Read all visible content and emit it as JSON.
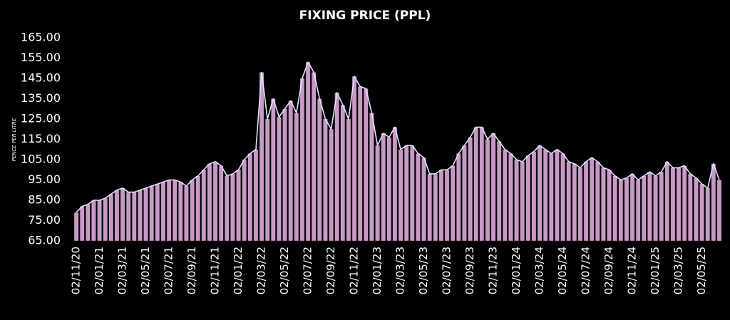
{
  "chart_data": {
    "type": "bar",
    "title": "FIXING PRICE (PPL)",
    "y_label": "PENCE PER LITRE",
    "categories": [
      "02/11/20",
      null,
      null,
      null,
      "02/01/21",
      null,
      null,
      null,
      "02/03/21",
      null,
      null,
      null,
      "02/05/21",
      null,
      null,
      null,
      "02/07/21",
      null,
      null,
      null,
      "02/09/21",
      null,
      null,
      null,
      "02/11/21",
      null,
      null,
      null,
      "02/01/22",
      null,
      null,
      null,
      "02/03/22",
      null,
      null,
      null,
      "02/05/22",
      null,
      null,
      null,
      "02/07/22",
      null,
      null,
      null,
      "02/09/22",
      null,
      null,
      null,
      "02/11/22",
      null,
      null,
      null,
      "02/01/23",
      null,
      null,
      null,
      "02/03/23",
      null,
      null,
      null,
      "02/05/23",
      null,
      null,
      null,
      "02/07/23",
      null,
      null,
      null,
      "02/09/23",
      null,
      null,
      null,
      "02/11/23",
      null,
      null,
      null,
      "02/01/24",
      null,
      null,
      null,
      "02/03/24",
      null,
      null,
      null,
      "02/05/24",
      null,
      null,
      null,
      "02/07/24",
      null,
      null,
      null,
      "02/09/24",
      null,
      null,
      null,
      "02/11/24",
      null,
      null,
      null,
      "02/01/25",
      null,
      null,
      null,
      "02/03/25",
      null,
      null,
      null,
      "02/05/25",
      null,
      null,
      null
    ],
    "values": [
      79,
      82,
      83,
      85,
      85,
      86,
      88,
      90,
      91,
      89,
      89,
      90,
      91,
      92,
      93,
      94,
      95,
      95,
      94,
      92,
      95,
      97,
      100,
      103,
      104,
      102,
      97,
      98,
      100,
      105,
      108,
      110,
      148,
      125,
      135,
      126,
      130,
      134,
      128,
      145,
      153,
      148,
      135,
      125,
      120,
      138,
      132,
      125,
      146,
      141,
      140,
      128,
      112,
      118,
      116,
      121,
      110,
      112,
      112,
      108,
      106,
      98,
      98,
      100,
      100,
      102,
      108,
      112,
      116,
      121,
      121,
      115,
      118,
      114,
      110,
      108,
      105,
      104,
      107,
      109,
      112,
      110,
      108,
      110,
      108,
      104,
      103,
      101,
      104,
      106,
      104,
      101,
      100,
      97,
      95,
      96,
      98,
      95,
      97,
      99,
      97,
      99,
      104,
      101,
      101,
      102,
      98,
      96,
      93,
      91,
      103,
      95
    ],
    "color": "#c79ac6",
    "line_color": "#dfe4ff",
    "ylim": [
      65,
      165
    ],
    "yticks": [
      {
        "value": 65,
        "label": "65.00"
      },
      {
        "value": 75,
        "label": "75.00"
      },
      {
        "value": 85,
        "label": "85.00"
      },
      {
        "value": 95,
        "label": "95.00"
      },
      {
        "value": 105,
        "label": "105.00"
      },
      {
        "value": 115,
        "label": "115.00"
      },
      {
        "value": 125,
        "label": "125.00"
      },
      {
        "value": 135,
        "label": "135.00"
      },
      {
        "value": 145,
        "label": "145.00"
      },
      {
        "value": 155,
        "label": "155.00"
      },
      {
        "value": 165,
        "label": "165.00"
      }
    ],
    "grid": false
  }
}
